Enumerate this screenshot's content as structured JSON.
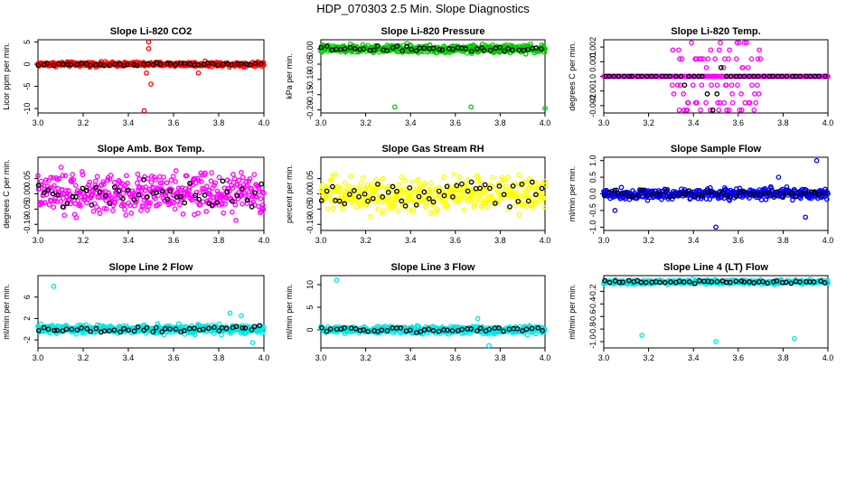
{
  "figure": {
    "title": "HDP_070303  2.5 Min. Slope Diagnostics"
  },
  "chart_data": [
    {
      "type": "scatter",
      "title": "Slope Li-820 CO2",
      "xlabel": "",
      "ylabel": "Licor ppm per min.",
      "xlim": [
        3.0,
        4.0
      ],
      "ylim": [
        -11,
        5.5
      ],
      "xticks": [
        "3.0",
        "3.2",
        "3.4",
        "3.6",
        "3.8",
        "4.0"
      ],
      "yticks": [
        -10,
        -5,
        0,
        5
      ],
      "ytick_labels": [
        "-10",
        "-5",
        "0",
        "5"
      ],
      "color": "#ff0000",
      "center": 0,
      "noise": 0.3,
      "outliers": [
        [
          3.49,
          5
        ],
        [
          3.49,
          3.5
        ],
        [
          3.48,
          -2
        ],
        [
          3.5,
          -4.5
        ],
        [
          3.47,
          -10.5
        ],
        [
          3.71,
          -2
        ]
      ],
      "black_points": 48
    },
    {
      "type": "scatter",
      "title": "Slope Li-820 Pressure",
      "xlabel": "",
      "ylabel": "kPa per min.",
      "xlim": [
        3.0,
        4.0
      ],
      "ylim": [
        -0.21,
        0.03
      ],
      "xticks": [
        "3.0",
        "3.2",
        "3.4",
        "3.6",
        "3.8",
        "4.0"
      ],
      "yticks": [
        -0.2,
        -0.15,
        -0.1,
        -0.05,
        0.0
      ],
      "ytick_labels": [
        "-0.20",
        "-0.15",
        "-0.10",
        "-0.05",
        "0.00"
      ],
      "color": "#00cc00",
      "center": 0.0,
      "noise": 0.008,
      "outliers": [
        [
          3.33,
          -0.19
        ],
        [
          3.67,
          -0.19
        ],
        [
          4.0,
          -0.195
        ]
      ],
      "black_points": 48
    },
    {
      "type": "scatter",
      "title": "Slope Li-820 Temp.",
      "xlabel": "",
      "ylabel": "degrees C per min.",
      "xlim": [
        3.0,
        4.0
      ],
      "ylim": [
        -0.0025,
        0.0025
      ],
      "xticks": [
        "3.0",
        "3.2",
        "3.4",
        "3.6",
        "3.8",
        "4.0"
      ],
      "yticks": [
        -0.002,
        -0.001,
        0.0,
        0.001,
        0.002
      ],
      "ytick_labels": [
        "-0.002",
        "-0.001",
        "0",
        "0.001",
        "0.002"
      ],
      "color": "#ff00ff",
      "center": 0.0,
      "noise": 0.0,
      "levels": [
        -0.0023,
        -0.0018,
        -0.0012,
        -0.0006,
        0.0,
        0.0006,
        0.0012,
        0.0018,
        0.0023
      ],
      "black_points": 48
    },
    {
      "type": "scatter",
      "title": "Slope Amb. Box Temp.",
      "xlabel": "",
      "ylabel": "degrees C per min.",
      "xlim": [
        3.0,
        4.0
      ],
      "ylim": [
        -0.12,
        0.12
      ],
      "xticks": [
        "3.0",
        "3.2",
        "3.4",
        "3.6",
        "3.8",
        "4.0"
      ],
      "yticks": [
        -0.1,
        -0.05,
        0.0,
        0.05
      ],
      "ytick_labels": [
        "-0.10",
        "-0.05",
        "0.00",
        "0.05"
      ],
      "color": "#ff00ff",
      "center": 0.0,
      "noise": 0.04,
      "outliers": [],
      "black_points": 48
    },
    {
      "type": "scatter",
      "title": "Slope Gas Stream RH",
      "xlabel": "",
      "ylabel": "percent per min.",
      "xlim": [
        3.0,
        4.0
      ],
      "ylim": [
        -0.12,
        0.12
      ],
      "xticks": [
        "3.0",
        "3.2",
        "3.4",
        "3.6",
        "3.8",
        "4.0"
      ],
      "yticks": [
        -0.1,
        -0.05,
        0.0,
        0.05
      ],
      "ytick_labels": [
        "-0.10",
        "-0.05",
        "0.00",
        "0.05"
      ],
      "color": "#ffff00",
      "center": 0.0,
      "noise": 0.035,
      "outliers": [],
      "black_points": 48
    },
    {
      "type": "scatter",
      "title": "Slope Sample Flow",
      "xlabel": "",
      "ylabel": "ml/min per min.",
      "xlim": [
        3.0,
        4.0
      ],
      "ylim": [
        -1.1,
        1.1
      ],
      "xticks": [
        "3.0",
        "3.2",
        "3.4",
        "3.6",
        "3.8",
        "4.0"
      ],
      "yticks": [
        -1.0,
        -0.5,
        0.0,
        0.5,
        1.0
      ],
      "ytick_labels": [
        "-1.0",
        "-0.5",
        "0.0",
        "0.5",
        "1.0"
      ],
      "color": "#0000ff",
      "center": 0.0,
      "noise": 0.1,
      "outliers": [
        [
          3.95,
          1.0
        ],
        [
          3.5,
          -1.0
        ],
        [
          3.05,
          -0.5
        ],
        [
          3.78,
          0.5
        ],
        [
          3.9,
          -0.7
        ]
      ],
      "black_points": 48
    },
    {
      "type": "scatter",
      "title": "Slope Line 2 Flow",
      "xlabel": "",
      "ylabel": "ml/min per min.",
      "xlim": [
        3.0,
        4.0
      ],
      "ylim": [
        -3.5,
        10
      ],
      "xticks": [
        "3.0",
        "3.2",
        "3.4",
        "3.6",
        "3.8",
        "4.0"
      ],
      "yticks": [
        -2,
        2,
        6
      ],
      "ytick_labels": [
        "-2",
        "2",
        "6"
      ],
      "color": "#00e5e5",
      "center": 0.0,
      "noise": 0.5,
      "outliers": [
        [
          3.07,
          8.0
        ],
        [
          3.85,
          3.0
        ],
        [
          3.9,
          2.5
        ],
        [
          3.95,
          -2.5
        ]
      ],
      "black_points": 48
    },
    {
      "type": "scatter",
      "title": "Slope Line 3 Flow",
      "xlabel": "",
      "ylabel": "ml/min per min.",
      "xlim": [
        3.0,
        4.0
      ],
      "ylim": [
        -4,
        12
      ],
      "xticks": [
        "3.0",
        "3.2",
        "3.4",
        "3.6",
        "3.8",
        "4.0"
      ],
      "yticks": [
        0,
        5,
        10
      ],
      "ytick_labels": [
        "0",
        "5",
        "10"
      ],
      "color": "#00e5e5",
      "center": 0.0,
      "noise": 0.5,
      "outliers": [
        [
          3.07,
          11.0
        ],
        [
          3.7,
          2.5
        ],
        [
          3.75,
          -3.5
        ]
      ],
      "black_points": 48
    },
    {
      "type": "scatter",
      "title": "Slope Line 4 (LT) Flow",
      "xlabel": "",
      "ylabel": "ml/min per min.",
      "xlim": [
        3.0,
        4.0
      ],
      "ylim": [
        -1.1,
        0.05
      ],
      "xticks": [
        "3.0",
        "3.2",
        "3.4",
        "3.6",
        "3.8",
        "4.0"
      ],
      "yticks": [
        -1.0,
        -0.8,
        -0.6,
        -0.4,
        -0.2
      ],
      "ytick_labels": [
        "-1.0",
        "-0.8",
        "-0.6",
        "-0.4",
        "-0.2"
      ],
      "color": "#00e5e5",
      "center": -0.05,
      "noise": 0.02,
      "outliers": [
        [
          3.17,
          -0.9
        ],
        [
          3.5,
          -1.0
        ],
        [
          3.85,
          -0.95
        ]
      ],
      "black_points": 48
    }
  ]
}
